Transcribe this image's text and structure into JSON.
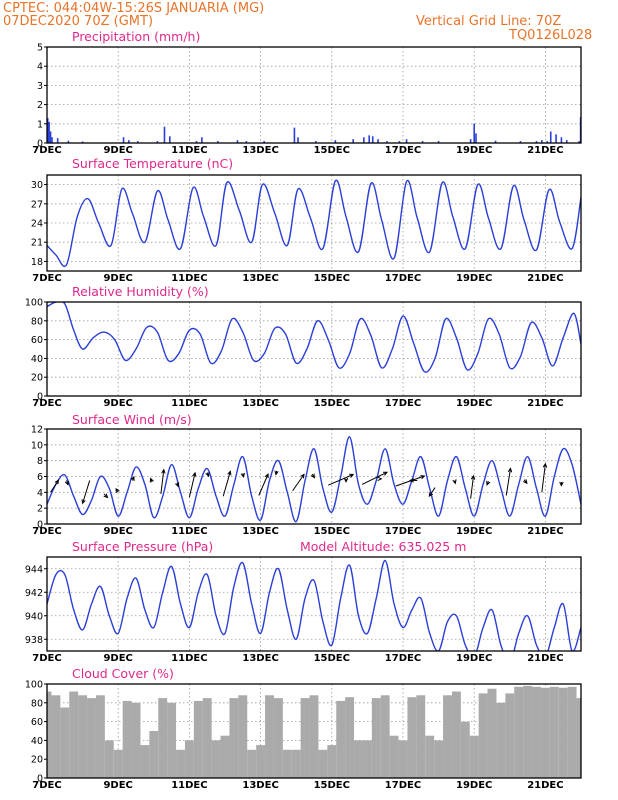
{
  "header": {
    "line1": "CPTEC:   044:04W-15:26S   JANUARIA (MG)",
    "line2": "07DEC2020 70Z (GMT)",
    "grid_note": "Vertical Grid Line: 70Z",
    "code": "TQ0126L028"
  },
  "model_altitude": "Model Altitude: 635.025 m",
  "series_color": "#2a3fd8",
  "cloud_color": "#aaaaaa",
  "chart_data": [
    {
      "id": "precip",
      "type": "bar",
      "title": "Precipitation (mm/h)",
      "ylim": [
        0,
        5
      ],
      "yticks": [
        0,
        1,
        2,
        3,
        4,
        5
      ],
      "xlim": [
        7,
        22
      ],
      "xticks": [
        7,
        9,
        11,
        13,
        15,
        17,
        19,
        21
      ],
      "xtick_labels": [
        "7DEC",
        "9DEC",
        "11DEC",
        "13DEC",
        "15DEC",
        "17DEC",
        "19DEC",
        "21DEC"
      ],
      "x": [
        7.02,
        7.06,
        7.1,
        7.14,
        7.3,
        7.6,
        8.0,
        9.15,
        9.3,
        9.55,
        10.1,
        10.3,
        10.45,
        11.2,
        11.35,
        11.8,
        12.35,
        12.6,
        13.1,
        13.95,
        14.05,
        14.55,
        15.1,
        15.6,
        15.9,
        16.05,
        16.15,
        16.3,
        16.55,
        16.9,
        17.1,
        17.55,
        18.0,
        18.9,
        19.0,
        19.05,
        19.6,
        20.3,
        20.75,
        20.9,
        21.05,
        21.15,
        21.3,
        21.45,
        21.6,
        21.95,
        21.99
      ],
      "values": [
        1.3,
        1.1,
        0.6,
        0.3,
        0.25,
        0.12,
        0.08,
        0.3,
        0.15,
        0.1,
        0.1,
        0.85,
        0.35,
        0.1,
        0.3,
        0.1,
        0.15,
        0.1,
        0.1,
        0.8,
        0.3,
        0.1,
        0.15,
        0.2,
        0.3,
        0.4,
        0.35,
        0.2,
        0.1,
        0.1,
        0.2,
        0.1,
        0.1,
        0.2,
        1.0,
        0.5,
        0.12,
        0.1,
        0.1,
        0.15,
        0.1,
        0.6,
        0.45,
        0.3,
        0.15,
        0.1,
        1.35
      ]
    },
    {
      "id": "temp",
      "type": "line",
      "title": "Surface Temperature (nC)",
      "ylim": [
        16.5,
        31.5
      ],
      "yticks": [
        18,
        21,
        24,
        27,
        30
      ],
      "xlim": [
        7,
        22
      ],
      "xticks": [
        7,
        9,
        11,
        13,
        15,
        17,
        19,
        21
      ],
      "xtick_labels": [
        "7DEC",
        "9DEC",
        "11DEC",
        "13DEC",
        "15DEC",
        "17DEC",
        "19DEC",
        "21DEC"
      ],
      "x": [
        7.0,
        7.25,
        7.55,
        7.85,
        8.15,
        8.45,
        8.8,
        9.1,
        9.4,
        9.75,
        10.1,
        10.4,
        10.75,
        11.1,
        11.4,
        11.75,
        12.05,
        12.4,
        12.75,
        13.05,
        13.4,
        13.75,
        14.05,
        14.4,
        14.75,
        15.1,
        15.4,
        15.75,
        16.1,
        16.4,
        16.75,
        17.1,
        17.4,
        17.75,
        18.1,
        18.4,
        18.75,
        19.1,
        19.4,
        19.75,
        20.1,
        20.4,
        20.75,
        21.1,
        21.4,
        21.75,
        22.0
      ],
      "values": [
        20.5,
        19.0,
        17.5,
        25.0,
        27.8,
        24.0,
        20.5,
        29.3,
        25.5,
        21.0,
        29.0,
        24.5,
        20.0,
        29.5,
        25.0,
        20.5,
        30.3,
        26.0,
        21.0,
        30.0,
        25.5,
        20.5,
        29.3,
        24.8,
        20.0,
        30.6,
        25.0,
        19.5,
        30.2,
        24.5,
        18.5,
        30.5,
        24.8,
        19.5,
        30.3,
        25.0,
        20.0,
        30.0,
        24.8,
        20.0,
        29.8,
        24.5,
        19.8,
        29.2,
        24.2,
        20.0,
        28.0
      ]
    },
    {
      "id": "rh",
      "type": "line",
      "title": "Relative Humidity (%)",
      "ylim": [
        0,
        100
      ],
      "yticks": [
        0,
        20,
        40,
        60,
        80,
        100
      ],
      "xlim": [
        7,
        22
      ],
      "xticks": [
        7,
        9,
        11,
        13,
        15,
        17,
        19,
        21
      ],
      "xtick_labels": [
        "7DEC",
        "9DEC",
        "11DEC",
        "13DEC",
        "15DEC",
        "17DEC",
        "19DEC",
        "21DEC"
      ],
      "x": [
        7.0,
        7.25,
        7.5,
        7.75,
        8.0,
        8.3,
        8.6,
        8.9,
        9.2,
        9.5,
        9.8,
        10.1,
        10.4,
        10.7,
        11.0,
        11.3,
        11.6,
        11.9,
        12.2,
        12.5,
        12.8,
        13.1,
        13.4,
        13.7,
        14.0,
        14.3,
        14.6,
        14.9,
        15.2,
        15.5,
        15.8,
        16.1,
        16.4,
        16.7,
        17.0,
        17.3,
        17.6,
        17.9,
        18.2,
        18.5,
        18.8,
        19.1,
        19.4,
        19.7,
        20.0,
        20.3,
        20.6,
        20.9,
        21.2,
        21.5,
        21.8,
        22.0
      ],
      "values": [
        95,
        100,
        98,
        70,
        50,
        62,
        68,
        60,
        38,
        50,
        73,
        68,
        38,
        45,
        70,
        66,
        35,
        48,
        82,
        68,
        38,
        45,
        72,
        66,
        35,
        50,
        80,
        60,
        30,
        45,
        82,
        64,
        30,
        50,
        85,
        56,
        26,
        40,
        82,
        62,
        28,
        45,
        82,
        66,
        30,
        42,
        78,
        62,
        32,
        62,
        88,
        55
      ]
    },
    {
      "id": "wind",
      "type": "line",
      "title": "Surface Wind (m/s)",
      "ylim": [
        0,
        12
      ],
      "yticks": [
        0,
        2,
        4,
        6,
        8,
        10,
        12
      ],
      "xlim": [
        7,
        22
      ],
      "xticks": [
        7,
        9,
        11,
        13,
        15,
        17,
        19,
        21
      ],
      "xtick_labels": [
        "7DEC",
        "9DEC",
        "11DEC",
        "13DEC",
        "15DEC",
        "17DEC",
        "19DEC",
        "21DEC"
      ],
      "x": [
        7.0,
        7.25,
        7.5,
        7.75,
        8.0,
        8.25,
        8.5,
        8.75,
        9.0,
        9.25,
        9.5,
        9.75,
        10.0,
        10.25,
        10.5,
        10.75,
        11.0,
        11.25,
        11.5,
        11.75,
        12.0,
        12.25,
        12.5,
        12.75,
        13.0,
        13.25,
        13.5,
        13.75,
        14.0,
        14.25,
        14.5,
        14.75,
        15.0,
        15.25,
        15.5,
        15.75,
        16.0,
        16.25,
        16.5,
        16.75,
        17.0,
        17.25,
        17.5,
        17.75,
        18.0,
        18.25,
        18.5,
        18.75,
        19.0,
        19.25,
        19.5,
        19.75,
        20.0,
        20.25,
        20.5,
        20.75,
        21.0,
        21.25,
        21.5,
        21.75,
        22.0
      ],
      "values": [
        2.5,
        5.0,
        6.2,
        3.5,
        1.2,
        3.0,
        6.0,
        4.5,
        1.0,
        4.0,
        7.2,
        5.0,
        0.8,
        3.5,
        7.5,
        4.0,
        0.8,
        4.5,
        7.0,
        3.5,
        1.0,
        5.0,
        8.5,
        3.5,
        0.5,
        5.5,
        8.0,
        4.0,
        0.3,
        5.5,
        9.5,
        4.5,
        1.5,
        6.0,
        11.0,
        5.0,
        2.5,
        5.5,
        9.5,
        5.0,
        2.5,
        5.5,
        8.5,
        4.5,
        1.0,
        5.5,
        8.5,
        4.5,
        1.0,
        5.0,
        8.0,
        4.5,
        1.0,
        5.0,
        8.5,
        4.5,
        1.0,
        6.0,
        9.5,
        7.5,
        2.5
      ],
      "arrows": {
        "x": [
          7.1,
          7.55,
          8.2,
          8.6,
          9.0,
          9.4,
          9.95,
          10.2,
          10.65,
          11.0,
          11.5,
          11.95,
          12.5,
          12.95,
          13.45,
          13.9,
          14.45,
          14.9,
          15.4,
          15.85,
          16.35,
          16.8,
          17.4,
          17.9,
          18.45,
          18.9,
          19.4,
          19.9,
          20.4,
          20.9,
          21.45
        ],
        "y": [
          4.0,
          5.5,
          5.5,
          3.8,
          4.0,
          5.5,
          5.3,
          3.8,
          5.2,
          3.4,
          6.5,
          3.5,
          6.4,
          3.6,
          6.7,
          4.2,
          6.3,
          4.9,
          5.7,
          5.0,
          5.7,
          4.8,
          5.5,
          4.6,
          5.5,
          3.2,
          5.4,
          3.6,
          5.6,
          4.0,
          5.3
        ],
        "u": [
          1.1,
          0.2,
          -1.0,
          0.5,
          -0.3,
          0.2,
          -0.2,
          0.4,
          0.2,
          0.8,
          0.2,
          1.0,
          0.1,
          1.3,
          -0.1,
          1.6,
          0.3,
          3.5,
          0.0,
          3.5,
          0.2,
          4.0,
          -1.0,
          -0.8,
          0.1,
          0.4,
          -0.2,
          0.6,
          0.4,
          0.5,
          0.0
        ],
        "v": [
          1.7,
          -0.6,
          -3.2,
          -0.5,
          0.5,
          0.5,
          0.5,
          3.4,
          -0.5,
          3.4,
          -0.5,
          3.5,
          -0.5,
          3.0,
          -0.5,
          2.3,
          -0.5,
          1.5,
          -0.4,
          1.7,
          0.0,
          1.4,
          0.0,
          -1.2,
          -0.4,
          3.2,
          -0.5,
          3.8,
          -0.5,
          4.0,
          -0.5
        ]
      }
    },
    {
      "id": "pressure",
      "type": "line",
      "title": "Surface Pressure (hPa)",
      "ylim": [
        937,
        945
      ],
      "yticks": [
        938,
        940,
        942,
        944
      ],
      "xlim": [
        7,
        22
      ],
      "xticks": [
        7,
        9,
        11,
        13,
        15,
        17,
        19,
        21
      ],
      "xtick_labels": [
        "7DEC",
        "9DEC",
        "11DEC",
        "13DEC",
        "15DEC",
        "17DEC",
        "19DEC",
        "21DEC"
      ],
      "x": [
        7.0,
        7.25,
        7.5,
        7.75,
        8.0,
        8.25,
        8.5,
        8.75,
        9.0,
        9.25,
        9.5,
        9.75,
        10.0,
        10.25,
        10.5,
        10.75,
        11.0,
        11.25,
        11.5,
        11.75,
        12.0,
        12.25,
        12.5,
        12.75,
        13.0,
        13.25,
        13.5,
        13.75,
        14.0,
        14.25,
        14.5,
        14.75,
        15.0,
        15.25,
        15.5,
        15.75,
        16.0,
        16.25,
        16.5,
        16.75,
        17.0,
        17.25,
        17.5,
        17.75,
        18.0,
        18.25,
        18.5,
        18.75,
        19.0,
        19.25,
        19.5,
        19.75,
        20.0,
        20.25,
        20.5,
        20.75,
        21.0,
        21.25,
        21.5,
        21.75,
        22.0
      ],
      "values": [
        941.0,
        943.5,
        943.5,
        940.5,
        938.8,
        941.0,
        942.5,
        940.0,
        938.5,
        941.5,
        943.2,
        940.5,
        939.0,
        942.0,
        944.2,
        941.0,
        939.0,
        942.0,
        943.5,
        940.0,
        938.5,
        942.5,
        944.5,
        941.0,
        938.5,
        942.0,
        944.0,
        940.5,
        938.0,
        941.5,
        943.0,
        939.5,
        937.5,
        941.5,
        944.3,
        940.0,
        938.5,
        941.5,
        944.7,
        941.0,
        939.0,
        940.5,
        941.5,
        938.5,
        937.0,
        939.5,
        940.0,
        937.5,
        936.5,
        939.0,
        940.5,
        937.5,
        936.0,
        938.5,
        940.0,
        937.5,
        936.5,
        939.0,
        941.0,
        937.0,
        939.0
      ]
    },
    {
      "id": "cloud",
      "type": "bar",
      "title": "Cloud Cover (%)",
      "ylim": [
        0,
        100
      ],
      "yticks": [
        0,
        20,
        40,
        60,
        80,
        100
      ],
      "xlim": [
        7,
        22
      ],
      "xticks": [
        7,
        9,
        11,
        13,
        15,
        17,
        19,
        21
      ],
      "xtick_labels": [
        "7DEC",
        "9DEC",
        "11DEC",
        "13DEC",
        "15DEC",
        "17DEC",
        "19DEC",
        "21DEC"
      ],
      "x": [
        7.0,
        7.25,
        7.5,
        7.75,
        8.0,
        8.25,
        8.5,
        8.75,
        9.0,
        9.25,
        9.5,
        9.75,
        10.0,
        10.25,
        10.5,
        10.75,
        11.0,
        11.25,
        11.5,
        11.75,
        12.0,
        12.25,
        12.5,
        12.75,
        13.0,
        13.25,
        13.5,
        13.75,
        14.0,
        14.25,
        14.5,
        14.75,
        15.0,
        15.25,
        15.5,
        15.75,
        16.0,
        16.25,
        16.5,
        16.75,
        17.0,
        17.25,
        17.5,
        17.75,
        18.0,
        18.25,
        18.5,
        18.75,
        19.0,
        19.25,
        19.5,
        19.75,
        20.0,
        20.25,
        20.5,
        20.75,
        21.0,
        21.25,
        21.5,
        21.75,
        22.0
      ],
      "values": [
        92,
        88,
        75,
        92,
        88,
        85,
        88,
        40,
        30,
        82,
        80,
        35,
        50,
        85,
        80,
        30,
        40,
        82,
        85,
        40,
        45,
        85,
        88,
        30,
        35,
        88,
        85,
        30,
        30,
        85,
        88,
        30,
        35,
        82,
        86,
        40,
        40,
        85,
        88,
        45,
        40,
        86,
        88,
        45,
        40,
        88,
        92,
        60,
        45,
        90,
        95,
        80,
        90,
        97,
        98,
        97,
        96,
        97,
        96,
        97,
        85
      ]
    }
  ]
}
